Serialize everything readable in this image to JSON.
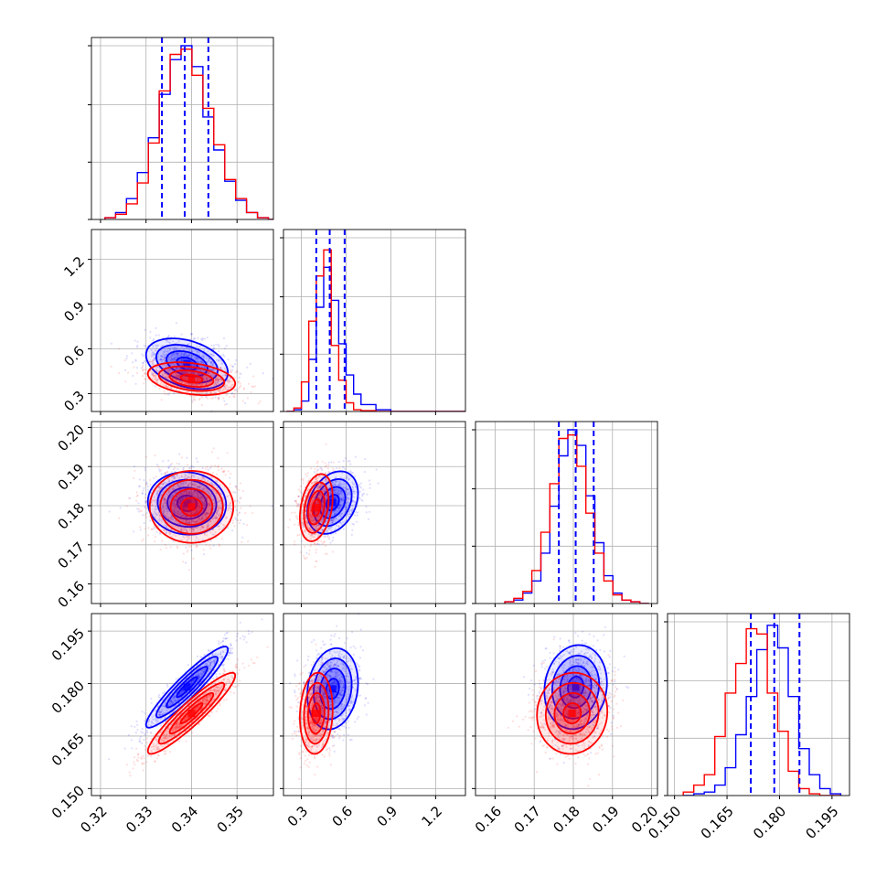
{
  "chart_data": {
    "type": "corner",
    "grid": true,
    "series": [
      {
        "name": "",
        "color": "#0000ff"
      },
      {
        "name": "",
        "color": "#ff0000"
      }
    ],
    "parameters": [
      {
        "index": 0,
        "range": [
          0.318,
          0.358
        ],
        "ticks": [
          0.32,
          0.33,
          0.34,
          0.35
        ],
        "tick_labels": [
          "0.32",
          "0.33",
          "0.34",
          "0.35"
        ],
        "quantiles_blue": [
          0.3335,
          0.3385,
          0.3437
        ]
      },
      {
        "index": 1,
        "range": [
          0.18,
          1.4
        ],
        "ticks": [
          0.3,
          0.6,
          0.9,
          1.2
        ],
        "tick_labels": [
          "0.3",
          "0.6",
          "0.9",
          "1.2"
        ],
        "quantiles_blue": [
          0.4,
          0.49,
          0.59
        ]
      },
      {
        "index": 2,
        "range": [
          0.155,
          0.2015
        ],
        "ticks": [
          0.16,
          0.17,
          0.18,
          0.19,
          0.2
        ],
        "tick_labels": [
          "0.16",
          "0.17",
          "0.18",
          "0.19",
          "0.20"
        ],
        "quantiles_blue": [
          0.1763,
          0.1806,
          0.1852
        ]
      },
      {
        "index": 3,
        "range": [
          0.148,
          0.2
        ],
        "ticks": [
          0.15,
          0.165,
          0.18,
          0.195
        ],
        "tick_labels": [
          "0.150",
          "0.165",
          "0.180",
          "0.195"
        ],
        "quantiles_blue": [
          0.1718,
          0.1785,
          0.1857
        ]
      }
    ],
    "histograms": [
      {
        "param": 0,
        "bin_edges": [
          0.321,
          0.3233,
          0.3257,
          0.3281,
          0.3305,
          0.3329,
          0.3353,
          0.3377,
          0.3401,
          0.3425,
          0.3449,
          0.3473,
          0.3497,
          0.3521,
          0.3545,
          0.3569,
          0.3593
        ],
        "blue": [
          0.01,
          0.04,
          0.12,
          0.27,
          0.47,
          0.72,
          0.92,
          1.0,
          0.88,
          0.59,
          0.4,
          0.22,
          0.11,
          0.04,
          0.01,
          0.0
        ],
        "red": [
          0.01,
          0.03,
          0.09,
          0.21,
          0.44,
          0.74,
          0.95,
          0.98,
          0.83,
          0.64,
          0.43,
          0.23,
          0.12,
          0.04,
          0.01,
          0.0
        ]
      },
      {
        "param": 1,
        "bin_edges": [
          0.2,
          0.25,
          0.3,
          0.35,
          0.4,
          0.45,
          0.5,
          0.55,
          0.6,
          0.65,
          0.7,
          0.8,
          0.9,
          1.0,
          1.4
        ],
        "blue": [
          0.0,
          0.01,
          0.06,
          0.3,
          0.6,
          0.83,
          0.64,
          0.39,
          0.21,
          0.1,
          0.04,
          0.01,
          0.0,
          0.0
        ],
        "red": [
          0.0,
          0.02,
          0.17,
          0.52,
          0.78,
          0.93,
          0.38,
          0.18,
          0.05,
          0.01,
          0.005,
          0.0,
          0.0,
          0.0
        ]
      },
      {
        "param": 2,
        "bin_edges": [
          0.1625,
          0.1648,
          0.1671,
          0.1694,
          0.1717,
          0.174,
          0.1763,
          0.1786,
          0.1809,
          0.1832,
          0.1855,
          0.1878,
          0.1901,
          0.1924,
          0.1947,
          0.197,
          0.1993
        ],
        "blue": [
          0.01,
          0.02,
          0.06,
          0.13,
          0.29,
          0.56,
          0.85,
          1.0,
          0.91,
          0.62,
          0.35,
          0.16,
          0.06,
          0.02,
          0.01,
          0.0
        ],
        "red": [
          0.01,
          0.03,
          0.07,
          0.19,
          0.41,
          0.69,
          0.95,
          0.97,
          0.79,
          0.52,
          0.29,
          0.13,
          0.05,
          0.02,
          0.01,
          0.0
        ]
      },
      {
        "param": 3,
        "bin_edges": [
          0.1525,
          0.1555,
          0.1585,
          0.1615,
          0.1645,
          0.1675,
          0.1705,
          0.1735,
          0.1765,
          0.1795,
          0.1825,
          0.1855,
          0.1885,
          0.1915,
          0.1945,
          0.1975
        ],
        "blue": [
          0.0,
          0.01,
          0.02,
          0.06,
          0.16,
          0.35,
          0.57,
          0.84,
          0.98,
          0.85,
          0.57,
          0.27,
          0.12,
          0.04,
          0.01
        ],
        "red": [
          0.02,
          0.06,
          0.12,
          0.34,
          0.59,
          0.76,
          0.96,
          0.93,
          0.59,
          0.37,
          0.14,
          0.04,
          0.01,
          0.0,
          0.0
        ]
      }
    ],
    "pairs": [
      {
        "x_param": 0,
        "y_param": 1,
        "blue": {
          "mx": 0.339,
          "my": 0.5,
          "sx": 0.0045,
          "sy": 0.085,
          "rho": -0.35
        },
        "red": {
          "mx": 0.34,
          "my": 0.4,
          "sx": 0.0048,
          "sy": 0.055,
          "rho": -0.3
        }
      },
      {
        "x_param": 0,
        "y_param": 2,
        "blue": {
          "mx": 0.339,
          "my": 0.1806,
          "sx": 0.0043,
          "sy": 0.004,
          "rho": -0.05
        },
        "red": {
          "mx": 0.34,
          "my": 0.1797,
          "sx": 0.0046,
          "sy": 0.0046,
          "rho": 0.0
        }
      },
      {
        "x_param": 1,
        "y_param": 2,
        "blue": {
          "mx": 0.51,
          "my": 0.1808,
          "sx": 0.085,
          "sy": 0.004,
          "rho": 0.3
        },
        "red": {
          "mx": 0.4,
          "my": 0.1795,
          "sx": 0.055,
          "sy": 0.0043,
          "rho": 0.3
        }
      },
      {
        "x_param": 0,
        "y_param": 3,
        "blue": {
          "mx": 0.339,
          "my": 0.179,
          "sx": 0.0045,
          "sy": 0.0058,
          "rho": 0.93
        },
        "red": {
          "mx": 0.34,
          "my": 0.1715,
          "sx": 0.0048,
          "sy": 0.0058,
          "rho": 0.93
        }
      },
      {
        "x_param": 1,
        "y_param": 3,
        "blue": {
          "mx": 0.51,
          "my": 0.1785,
          "sx": 0.085,
          "sy": 0.0058,
          "rho": 0.15
        },
        "red": {
          "mx": 0.4,
          "my": 0.1715,
          "sx": 0.055,
          "sy": 0.0058,
          "rho": 0.1
        }
      },
      {
        "x_param": 2,
        "y_param": 3,
        "blue": {
          "mx": 0.1806,
          "my": 0.179,
          "sx": 0.004,
          "sy": 0.006,
          "rho": 0.1
        },
        "red": {
          "mx": 0.1797,
          "my": 0.1715,
          "sx": 0.0045,
          "sy": 0.0058,
          "rho": 0.05
        }
      }
    ]
  }
}
